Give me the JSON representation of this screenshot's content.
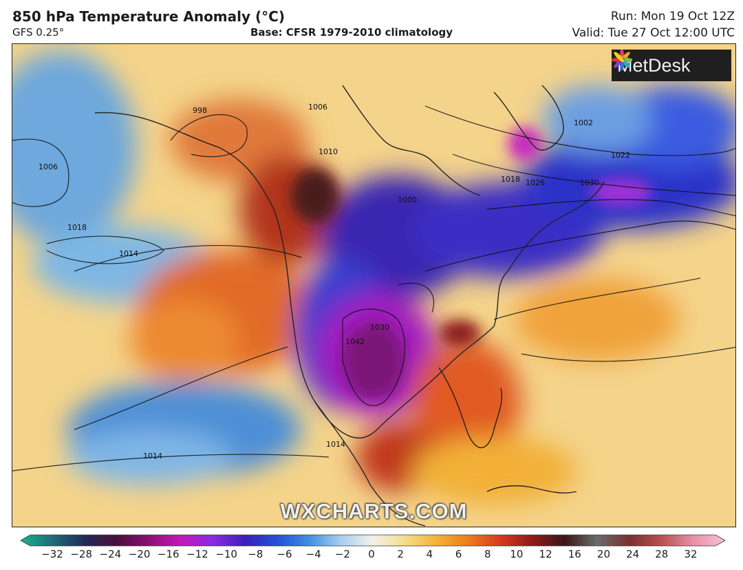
{
  "header": {
    "title": "850 hPa Temperature Anomaly (°C)",
    "model": "GFS 0.25°",
    "base": "Base: CFSR 1979-2010 climatology",
    "run": "Run: Mon 19 Oct 12Z",
    "valid": "Valid: Tue 27 Oct 12:00 UTC"
  },
  "logo": {
    "text": "MetDesk",
    "icon": "metdesk-flower-icon"
  },
  "watermark": "WXCHARTS.COM",
  "isobars": [
    "998",
    "1002",
    "1006",
    "1006",
    "1010",
    "1014",
    "1014",
    "1014",
    "1018",
    "1018",
    "1022",
    "1026",
    "1030",
    "1030",
    "1042",
    "1000"
  ],
  "colorbar": {
    "ticks": [
      "−32",
      "−28",
      "−24",
      "−20",
      "−16",
      "−12",
      "−10",
      "−8",
      "−6",
      "−4",
      "−2",
      "0",
      "2",
      "4",
      "6",
      "8",
      "10",
      "12",
      "16",
      "20",
      "24",
      "28",
      "32"
    ],
    "colors": [
      "#1ab38a",
      "#1f6b78",
      "#222a55",
      "#4a0f3c",
      "#8d0f72",
      "#c31ab8",
      "#8a2be2",
      "#3a20b8",
      "#2550d8",
      "#3f8ee0",
      "#a8cff0",
      "#f3f1e8",
      "#f4dc8c",
      "#f3b234",
      "#ec7a1c",
      "#d4391e",
      "#8c1a1a",
      "#3a1818",
      "#6b6b6b",
      "#7a3030",
      "#b85050",
      "#e890a8",
      "#f7c0d6"
    ]
  }
}
